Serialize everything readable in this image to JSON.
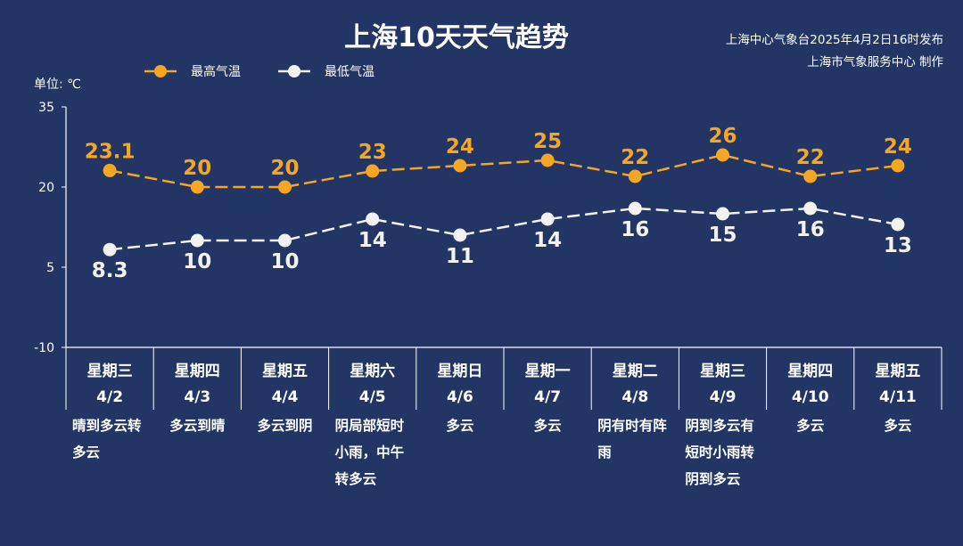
{
  "header": {
    "title": "上海10天天气趋势",
    "source_line1": "上海中心气象台2025年4月2日16时发布",
    "source_line2": "上海市气象服务中心 制作"
  },
  "colors": {
    "background": "#233564",
    "high_series": "#f5a623",
    "low_series": "#f2f2f2",
    "axis": "#ffffff"
  },
  "chart_data": {
    "type": "line",
    "title": "上海10天天气趋势",
    "unit_label": "单位: ℃",
    "ylim": [
      -10,
      35
    ],
    "yticks": [
      35,
      20,
      5,
      -10
    ],
    "grid": false,
    "legend_position": "top-left",
    "categories": [
      "4/2",
      "4/3",
      "4/4",
      "4/5",
      "4/6",
      "4/7",
      "4/8",
      "4/9",
      "4/10",
      "4/11"
    ],
    "weekdays": [
      "星期三",
      "星期四",
      "星期五",
      "星期六",
      "星期日",
      "星期一",
      "星期二",
      "星期三",
      "星期四",
      "星期五"
    ],
    "weather": [
      [
        "晴到多云转",
        "多云"
      ],
      [
        "多云到晴"
      ],
      [
        "多云到阴"
      ],
      [
        "阴局部短时",
        "小雨，中午",
        "转多云"
      ],
      [
        "多云"
      ],
      [
        "多云"
      ],
      [
        "阴有时有阵",
        "雨"
      ],
      [
        "阴到多云有",
        "短时小雨转",
        "阴到多云"
      ],
      [
        "多云"
      ],
      [
        "多云"
      ]
    ],
    "series": [
      {
        "name": "最高气温",
        "values": [
          23.1,
          20,
          20,
          23,
          24,
          25,
          22,
          26,
          22,
          24
        ],
        "labels": [
          "23.1",
          "20",
          "20",
          "23",
          "24",
          "25",
          "22",
          "26",
          "22",
          "24"
        ]
      },
      {
        "name": "最低气温",
        "values": [
          8.3,
          10,
          10,
          14,
          11,
          14,
          16,
          15,
          16,
          13
        ],
        "labels": [
          "8.3",
          "10",
          "10",
          "14",
          "11",
          "14",
          "16",
          "15",
          "16",
          "13"
        ]
      }
    ]
  }
}
